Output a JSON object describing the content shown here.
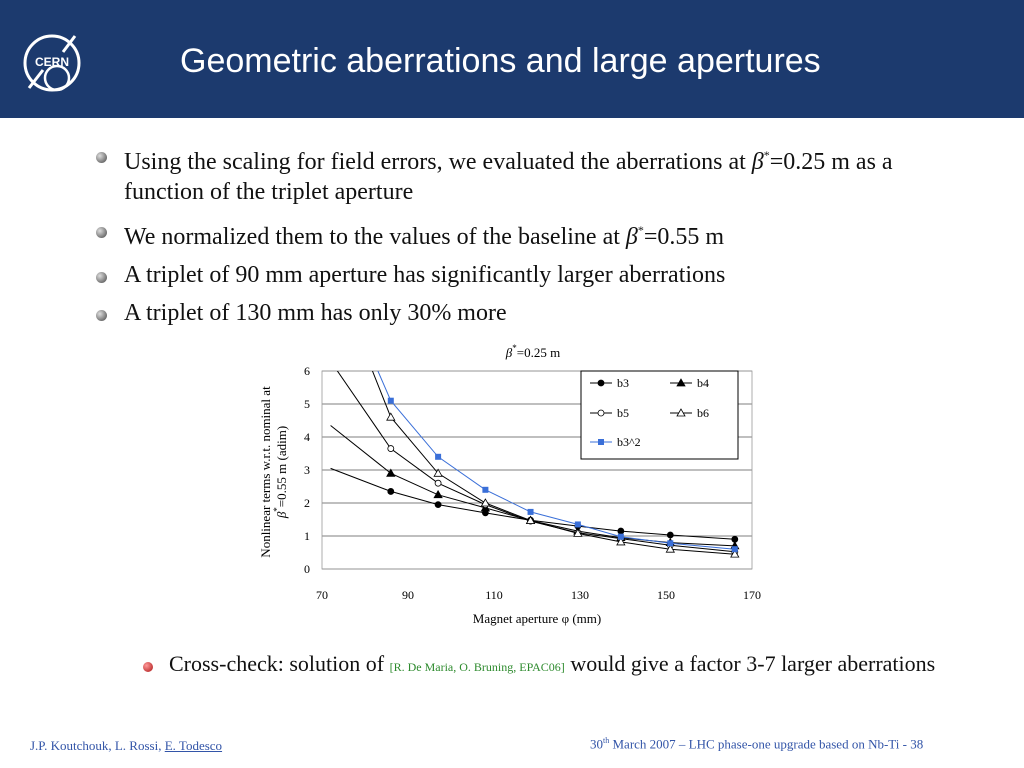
{
  "slide": {
    "title": "Geometric aberrations and large apertures",
    "logo_text": "CERN",
    "bullets": [
      {
        "pre": "Using the scaling for field errors, we evaluated the aberrations at ",
        "beta": "β",
        "star": "*",
        "post": "=0.25 m as a function of the triplet aperture"
      },
      {
        "pre": "We normalized them to the values of the baseline at ",
        "beta": "β",
        "star": "*",
        "post": "=0.55 m"
      },
      {
        "pre": "A triplet of 90 mm aperture has significantly larger aberrations",
        "beta": "",
        "star": "",
        "post": ""
      },
      {
        "pre": "A triplet of 130 mm has only 30% more",
        "beta": "",
        "star": "",
        "post": ""
      }
    ],
    "cross_check": {
      "pre": "Cross-check: solution of ",
      "ref": "[R. De Maria, O. Bruning, EPAC06]",
      "post": " would give a factor 3-7 larger aberrations"
    },
    "footer": {
      "authors": "J.P. Koutchouk, L. Rossi, ",
      "underlined_author": "E. Todesco",
      "date_day": "30",
      "date_sup": "th",
      "date_rest": " March 2007 – LHC phase-one upgrade based on Nb-Ti  - 38"
    },
    "colors": {
      "header": "#1c3a6e",
      "series_blue": "#3a6fd8",
      "ref_green": "#2e8b2e",
      "footer_text": "#3355a8"
    }
  },
  "chart_data": {
    "type": "line",
    "title_beta": "β",
    "title_star": "*",
    "title_rest": "=0.25 m",
    "xlabel_pre": "Magnet aperture ",
    "xlabel_phi": "φ",
    "xlabel_post": " (mm)",
    "ylabel_line1": "Nonlinear terms w.r.t. nominal  at",
    "ylabel_beta": "β",
    "ylabel_star": "*",
    "ylabel_line2_rest": "=0.55 m (adim)",
    "xlim": [
      70,
      170
    ],
    "ylim": [
      0,
      6
    ],
    "xticks": [
      70,
      90,
      110,
      130,
      150,
      170
    ],
    "yticks": [
      0,
      1,
      2,
      3,
      4,
      5,
      6
    ],
    "grid": "horizontal",
    "legend_position": "top-right",
    "x": [
      72,
      86,
      97,
      108,
      118.5,
      129.5,
      139.5,
      151,
      166
    ],
    "series": [
      {
        "name": "b3",
        "values": [
          3.05,
          2.35,
          1.95,
          1.7,
          1.48,
          1.3,
          1.15,
          1.03,
          0.9
        ]
      },
      {
        "name": "b4",
        "values": [
          4.35,
          2.9,
          2.25,
          1.85,
          1.47,
          1.15,
          0.95,
          0.8,
          0.7
        ]
      },
      {
        "name": "b5",
        "values": [
          6.3,
          3.65,
          2.6,
          1.95,
          1.45,
          1.1,
          0.92,
          0.72,
          0.52
        ]
      },
      {
        "name": "b6",
        "values": [
          9.2,
          4.6,
          2.9,
          2.0,
          1.47,
          1.08,
          0.82,
          0.6,
          0.45
        ]
      },
      {
        "name": "b3^2",
        "values": [
          9.3,
          5.1,
          3.4,
          2.4,
          1.73,
          1.35,
          0.98,
          0.78,
          0.6
        ]
      }
    ]
  }
}
